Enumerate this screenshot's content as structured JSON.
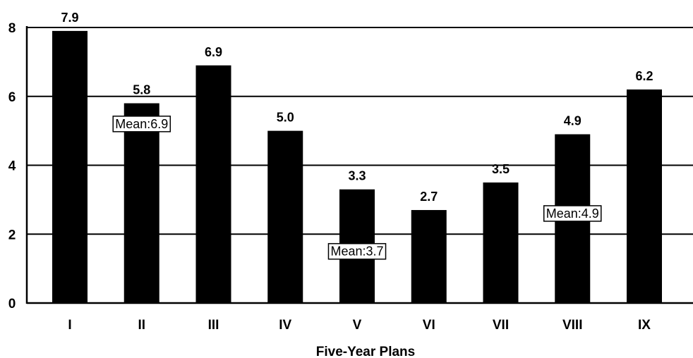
{
  "chart_data": {
    "type": "bar",
    "categories": [
      "I",
      "II",
      "III",
      "IV",
      "V",
      "VI",
      "VII",
      "VIII",
      "IX"
    ],
    "values": [
      7.9,
      5.8,
      6.9,
      5.0,
      3.3,
      2.7,
      3.5,
      4.9,
      6.2
    ],
    "data_labels": [
      "7.9",
      "5.8",
      "6.9",
      "5.0",
      "3.3",
      "2.7",
      "3.5",
      "4.9",
      "6.2"
    ],
    "y_ticks": [
      0,
      2,
      4,
      6,
      8
    ],
    "ylim": [
      0,
      8
    ],
    "xlabel": "Five-Year Plans",
    "ylabel": "",
    "title": "",
    "grid": true,
    "bar_color": "#000000",
    "annotations": [
      {
        "text": "Mean:6.9",
        "category": "II",
        "value": 5.2
      },
      {
        "text": "Mean:3.7",
        "category": "V",
        "value": 1.5
      },
      {
        "text": "Mean:4.9",
        "category": "VIII",
        "value": 2.6
      }
    ]
  }
}
